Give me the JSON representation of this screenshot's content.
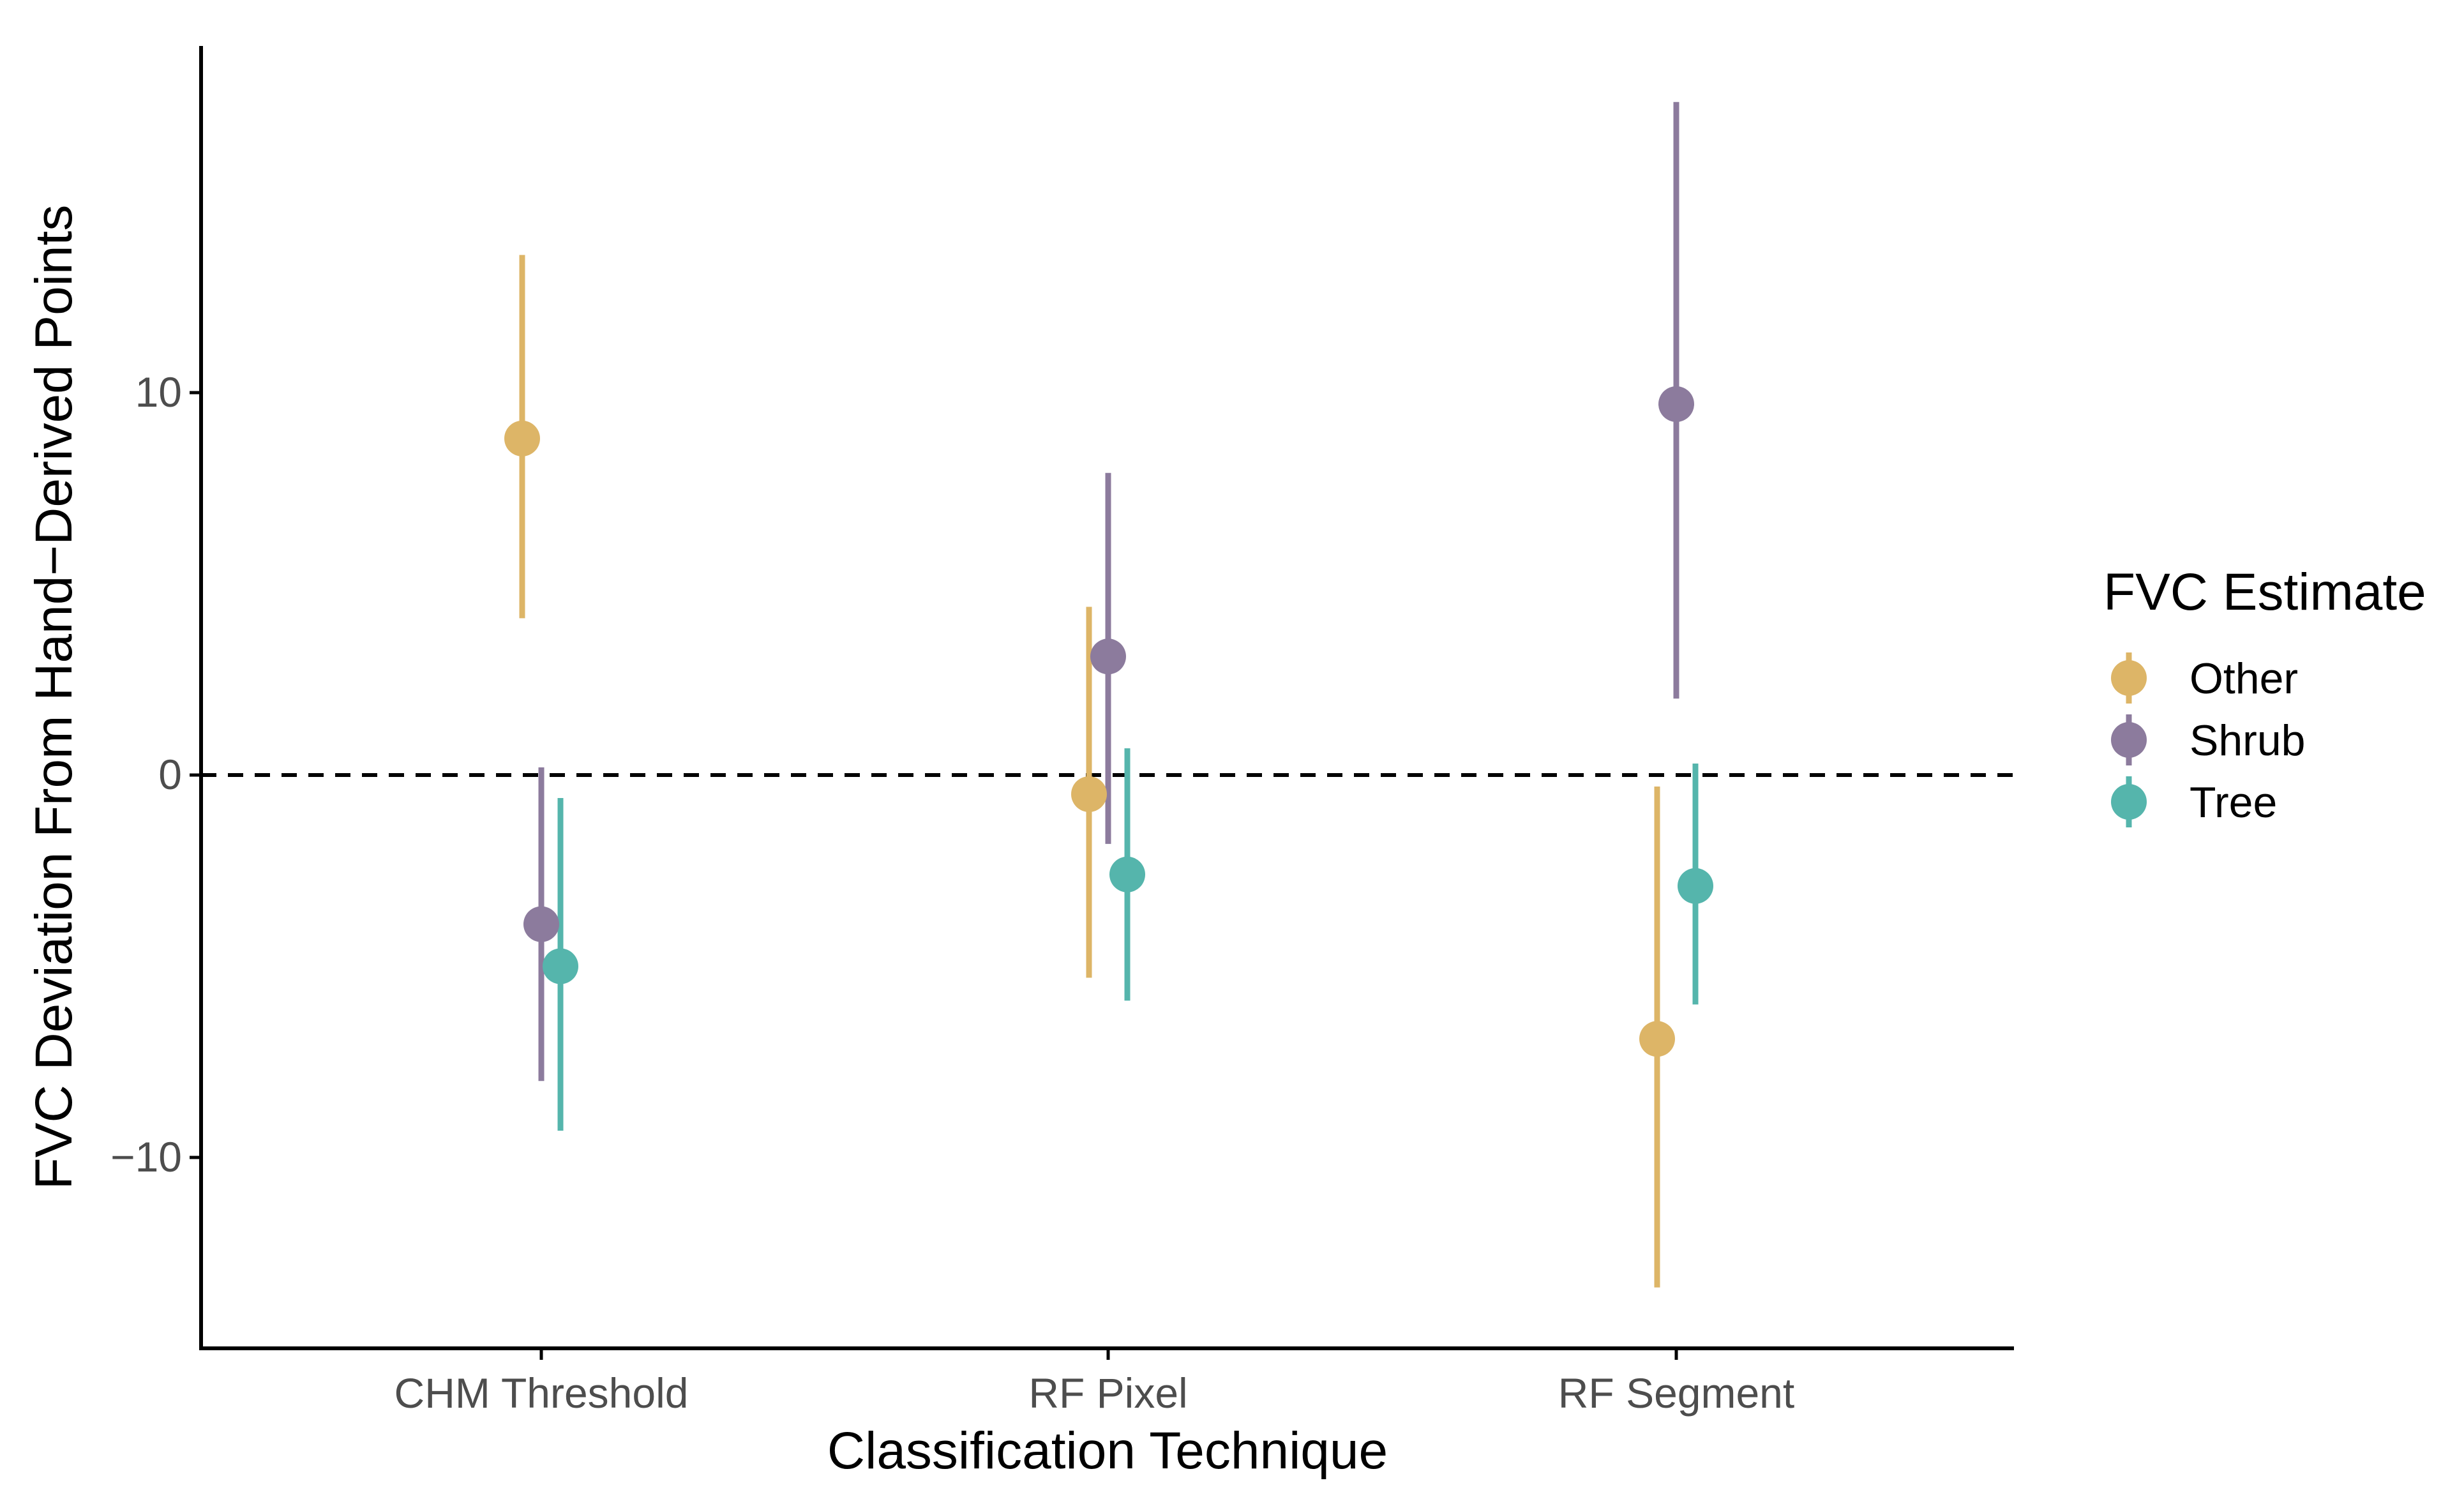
{
  "chart_data": {
    "type": "errorbar-dot",
    "title": "",
    "xlabel": "Classification Technique",
    "ylabel": "FVC Deviation From Hand−Derived Points",
    "categories": [
      "CHM Threshold",
      "RF Pixel",
      "RF Segment"
    ],
    "ylim": [
      -15,
      19
    ],
    "yticks": [
      10,
      0,
      -10
    ],
    "ytick_labels": [
      "10",
      "0",
      "−10"
    ],
    "reference_line": 0,
    "legend": {
      "title": "FVC Estimate",
      "position": "right"
    },
    "series": [
      {
        "name": "Other",
        "color": "#DDB567",
        "points": [
          {
            "category": "CHM Threshold",
            "value": 8.8,
            "low": 4.1,
            "high": 13.6
          },
          {
            "category": "RF Pixel",
            "value": -0.5,
            "low": -5.3,
            "high": 4.4
          },
          {
            "category": "RF Segment",
            "value": -6.9,
            "low": -13.4,
            "high": -0.3
          }
        ]
      },
      {
        "name": "Shrub",
        "color": "#8C7B9D",
        "points": [
          {
            "category": "CHM Threshold",
            "value": -3.9,
            "low": -8.0,
            "high": 0.2
          },
          {
            "category": "RF Pixel",
            "value": 3.1,
            "low": -1.8,
            "high": 7.9
          },
          {
            "category": "RF Segment",
            "value": 9.7,
            "low": 2.0,
            "high": 17.6
          }
        ]
      },
      {
        "name": "Tree",
        "color": "#55B5AC",
        "points": [
          {
            "category": "CHM Threshold",
            "value": -5.0,
            "low": -9.3,
            "high": -0.6
          },
          {
            "category": "RF Pixel",
            "value": -2.6,
            "low": -5.9,
            "high": 0.7
          },
          {
            "category": "RF Segment",
            "value": -2.9,
            "low": -6.0,
            "high": 0.3
          }
        ]
      }
    ]
  }
}
